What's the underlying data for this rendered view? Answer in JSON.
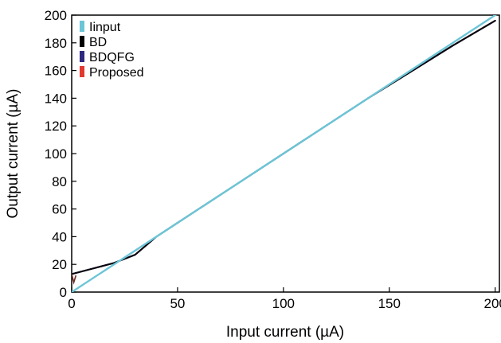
{
  "chart_data": {
    "type": "line",
    "title": "",
    "xlabel": "Input current (µA)",
    "ylabel": "Output current (µA)",
    "xlim": [
      0,
      202
    ],
    "ylim": [
      0,
      200
    ],
    "xticks": [
      0,
      50,
      100,
      150,
      200
    ],
    "yticks": [
      0,
      20,
      40,
      60,
      80,
      100,
      120,
      140,
      160,
      180,
      200
    ],
    "grid": false,
    "legend_position": "top-left",
    "series": [
      {
        "name": "Iinput",
        "color": "#6cc5d6",
        "x": [
          0,
          50,
          100,
          150,
          200,
          202
        ],
        "y": [
          0,
          50,
          100,
          150,
          200,
          202
        ]
      },
      {
        "name": "BD",
        "color": "#000000",
        "x": [
          0,
          10,
          20,
          30,
          40,
          50,
          60,
          80,
          100,
          120,
          140,
          160,
          180,
          200
        ],
        "y": [
          13,
          17,
          21,
          27,
          40,
          50,
          60,
          80,
          100,
          120,
          140,
          159,
          178,
          196
        ]
      },
      {
        "name": "BDQFG",
        "color": "#2e2a7e",
        "x": [
          0,
          10,
          20,
          30,
          40,
          50,
          60,
          80,
          100,
          120,
          140,
          160,
          180,
          200
        ],
        "y": [
          13,
          17,
          21,
          27,
          40,
          50,
          60,
          80,
          100,
          120,
          140,
          159,
          178,
          196
        ]
      },
      {
        "name": "Proposed",
        "color": "#e03a2f",
        "x": [
          0,
          10,
          20,
          30,
          40,
          50,
          60,
          80,
          100,
          120,
          140,
          160,
          180,
          200
        ],
        "y": [
          13,
          17,
          21,
          27,
          40,
          50,
          60,
          80,
          100,
          120,
          140,
          159,
          178,
          196
        ]
      }
    ]
  }
}
